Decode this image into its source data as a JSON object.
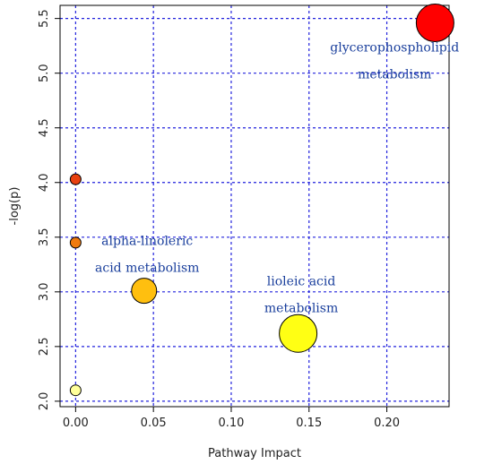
{
  "chart_data": {
    "type": "scatter",
    "xlabel": "Pathway Impact",
    "ylabel": "-log(p)",
    "xlim": [
      -0.01,
      0.24
    ],
    "ylim": [
      1.95,
      5.62
    ],
    "grid": true,
    "x_ticks": [
      0.0,
      0.05,
      0.1,
      0.15,
      0.2
    ],
    "x_tick_labels": [
      "0.00",
      "0.05",
      "0.10",
      "0.15",
      "0.20"
    ],
    "y_ticks": [
      2.0,
      2.5,
      3.0,
      3.5,
      4.0,
      4.5,
      5.0,
      5.5
    ],
    "y_tick_labels": [
      "2.0",
      "2.5",
      "3.0",
      "3.5",
      "4.0",
      "4.5",
      "5.0",
      "5.5"
    ],
    "points": [
      {
        "x": 0.0,
        "y": 2.1,
        "size_rank": 1,
        "color": "#ffff99"
      },
      {
        "x": 0.0,
        "y": 3.45,
        "size_rank": 1,
        "color": "#f07a10"
      },
      {
        "x": 0.0,
        "y": 4.03,
        "size_rank": 1,
        "color": "#e84010"
      },
      {
        "x": 0.044,
        "y": 3.01,
        "size_rank": 2,
        "color": "#ffbf0f"
      },
      {
        "x": 0.143,
        "y": 2.62,
        "size_rank": 3,
        "color": "#ffff14"
      },
      {
        "x": 0.231,
        "y": 5.46,
        "size_rank": 3,
        "color": "#ff0000"
      }
    ],
    "annotations": [
      {
        "lines": [
          "alpha-linoleric",
          "acid metabolism"
        ],
        "x": 0.046,
        "y": 3.43
      },
      {
        "lines": [
          "lioleic acid",
          "metabolism"
        ],
        "x": 0.145,
        "y": 3.06
      },
      {
        "lines": [
          "glycerophospholipid",
          "metabolism"
        ],
        "x": 0.205,
        "y": 5.2
      }
    ],
    "colors": {
      "grid": "#2222dd",
      "axis": "#000000",
      "annotation": "#1a3f9c"
    }
  }
}
